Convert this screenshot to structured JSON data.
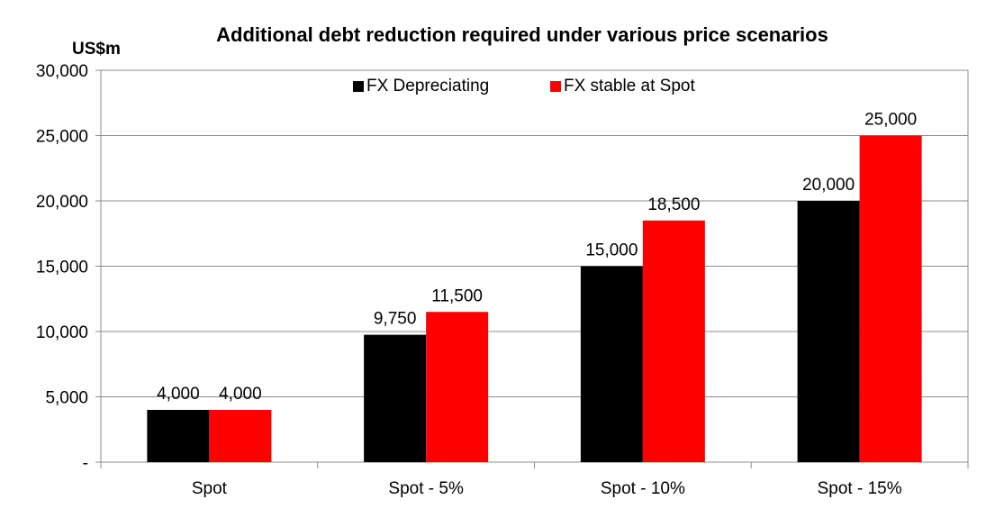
{
  "chart_data": {
    "type": "bar",
    "title": "Additional debt reduction required under various price scenarios",
    "ylabel": "US$m",
    "xlabel": "",
    "categories": [
      "Spot",
      "Spot - 5%",
      "Spot - 10%",
      "Spot - 15%"
    ],
    "series": [
      {
        "name": "FX Depreciating",
        "color": "#000000",
        "values": [
          4000,
          9750,
          15000,
          20000
        ],
        "labels": [
          "4,000",
          "9,750",
          "15,000",
          "20,000"
        ]
      },
      {
        "name": "FX stable at Spot",
        "color": "#ff0000",
        "values": [
          4000,
          11500,
          18500,
          25000
        ],
        "labels": [
          "4,000",
          "11,500",
          "18,500",
          "25,000"
        ]
      }
    ],
    "ylim": [
      0,
      30000
    ],
    "yticks": [
      0,
      5000,
      10000,
      15000,
      20000,
      25000,
      30000
    ],
    "ytick_labels": [
      "-",
      "5,000",
      "10,000",
      "15,000",
      "20,000",
      "25,000",
      "30,000"
    ],
    "grid": true,
    "legend_position": "top-center"
  }
}
